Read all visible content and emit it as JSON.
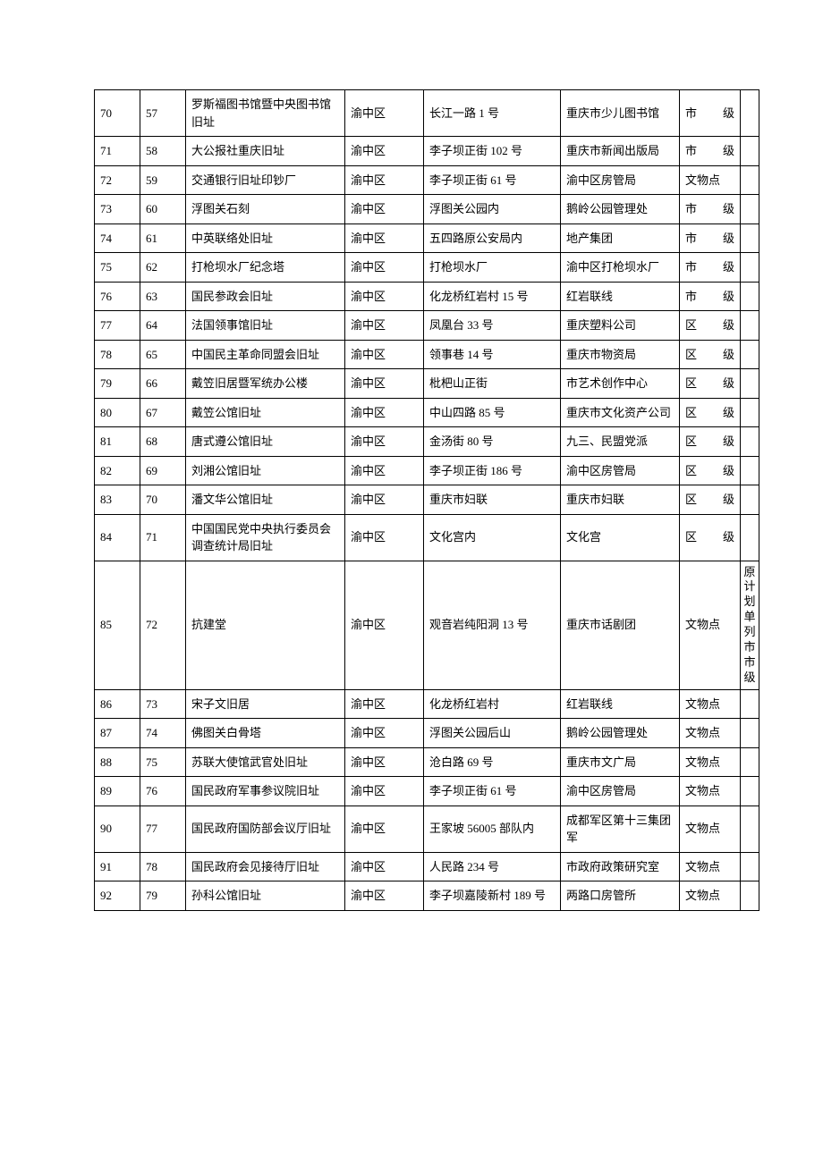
{
  "table": {
    "rows": [
      {
        "c1": "70",
        "c2": "57",
        "c3": "罗斯福图书馆暨中央图书馆旧址",
        "c4": "渝中区",
        "c5": "长江一路 1 号",
        "c6": "重庆市少儿图书馆",
        "c7": "市　级",
        "c8": ""
      },
      {
        "c1": "71",
        "c2": "58",
        "c3": "大公报社重庆旧址",
        "c4": "渝中区",
        "c5": "李子坝正街 102 号",
        "c6": "重庆市新闻出版局",
        "c7": "市　级",
        "c8": ""
      },
      {
        "c1": "72",
        "c2": "59",
        "c3": "交通银行旧址印钞厂",
        "c4": "渝中区",
        "c5": "李子坝正街 61 号",
        "c6": "渝中区房管局",
        "c7": "文物点",
        "c8": ""
      },
      {
        "c1": "73",
        "c2": "60",
        "c3": "浮图关石刻",
        "c4": "渝中区",
        "c5": "浮图关公园内",
        "c6": "鹅岭公园管理处",
        "c7": "市　级",
        "c8": ""
      },
      {
        "c1": "74",
        "c2": "61",
        "c3": "中英联络处旧址",
        "c4": "渝中区",
        "c5": "五四路原公安局内",
        "c6": "地产集团",
        "c7": "市　级",
        "c8": ""
      },
      {
        "c1": "75",
        "c2": "62",
        "c3": "打枪坝水厂纪念塔",
        "c4": "渝中区",
        "c5": "打枪坝水厂",
        "c6": "渝中区打枪坝水厂",
        "c7": "市　级",
        "c8": ""
      },
      {
        "c1": "76",
        "c2": "63",
        "c3": "国民参政会旧址",
        "c4": "渝中区",
        "c5": "化龙桥红岩村 15 号",
        "c6": "红岩联线",
        "c7": "市　级",
        "c8": ""
      },
      {
        "c1": "77",
        "c2": "64",
        "c3": "法国领事馆旧址",
        "c4": "渝中区",
        "c5": "凤凰台 33 号",
        "c6": "重庆塑料公司",
        "c7": "区　级",
        "c8": ""
      },
      {
        "c1": "78",
        "c2": "65",
        "c3": "中国民主革命同盟会旧址",
        "c4": "渝中区",
        "c5": "领事巷 14 号",
        "c6": "重庆市物资局",
        "c7": "区　级",
        "c8": ""
      },
      {
        "c1": "79",
        "c2": "66",
        "c3": "戴笠旧居暨军统办公楼",
        "c4": "渝中区",
        "c5": "枇杷山正街",
        "c6": "市艺术创作中心",
        "c7": "区　级",
        "c8": ""
      },
      {
        "c1": "80",
        "c2": "67",
        "c3": "戴笠公馆旧址",
        "c4": "渝中区",
        "c5": "中山四路 85 号",
        "c6": "重庆市文化资产公司",
        "c7": "区　级",
        "c8": ""
      },
      {
        "c1": "81",
        "c2": "68",
        "c3": "唐式遵公馆旧址",
        "c4": "渝中区",
        "c5": "金汤街 80 号",
        "c6": "九三、民盟党派",
        "c7": "区　级",
        "c8": ""
      },
      {
        "c1": "82",
        "c2": "69",
        "c3": "刘湘公馆旧址",
        "c4": "渝中区",
        "c5": "李子坝正街 186 号",
        "c6": "渝中区房管局",
        "c7": "区　级",
        "c8": ""
      },
      {
        "c1": "83",
        "c2": "70",
        "c3": "潘文华公馆旧址",
        "c4": "渝中区",
        "c5": "重庆市妇联",
        "c6": "重庆市妇联",
        "c7": "区　级",
        "c8": ""
      },
      {
        "c1": "84",
        "c2": "71",
        "c3": "中国国民党中央执行委员会调查统计局旧址",
        "c4": "渝中区",
        "c5": "文化宫内",
        "c6": "文化宫",
        "c7": "区　级",
        "c8": ""
      },
      {
        "c1": "85",
        "c2": "72",
        "c3": "抗建堂",
        "c4": "渝中区",
        "c5": "观音岩纯阳洞 13 号",
        "c6": "重庆市话剧团",
        "c7": "文物点",
        "c8": "原计划单列市市级"
      },
      {
        "c1": "86",
        "c2": "73",
        "c3": "宋子文旧居",
        "c4": "渝中区",
        "c5": "化龙桥红岩村",
        "c6": "红岩联线",
        "c7": "文物点",
        "c8": ""
      },
      {
        "c1": "87",
        "c2": "74",
        "c3": "佛图关白骨塔",
        "c4": "渝中区",
        "c5": "浮图关公园后山",
        "c6": "鹅岭公园管理处",
        "c7": "文物点",
        "c8": ""
      },
      {
        "c1": "88",
        "c2": "75",
        "c3": "苏联大使馆武官处旧址",
        "c4": "渝中区",
        "c5": "沧白路 69 号",
        "c6": "重庆市文广局",
        "c7": "文物点",
        "c8": ""
      },
      {
        "c1": "89",
        "c2": "76",
        "c3": "国民政府军事参议院旧址",
        "c4": "渝中区",
        "c5": "李子坝正街 61 号",
        "c6": "渝中区房管局",
        "c7": "文物点",
        "c8": ""
      },
      {
        "c1": "90",
        "c2": "77",
        "c3": "国民政府国防部会议厅旧址",
        "c4": "渝中区",
        "c5": "王家坡 56005 部队内",
        "c6": "成都军区第十三集团军",
        "c7": "文物点",
        "c8": ""
      },
      {
        "c1": "91",
        "c2": "78",
        "c3": "国民政府会见接待厅旧址",
        "c4": "渝中区",
        "c5": "人民路 234 号",
        "c6": "市政府政策研究室",
        "c7": "文物点",
        "c8": ""
      },
      {
        "c1": "92",
        "c2": "79",
        "c3": "孙科公馆旧址",
        "c4": "渝中区",
        "c5": "李子坝嘉陵新村 189 号",
        "c6": "两路口房管所",
        "c7": "文物点",
        "c8": ""
      }
    ]
  }
}
